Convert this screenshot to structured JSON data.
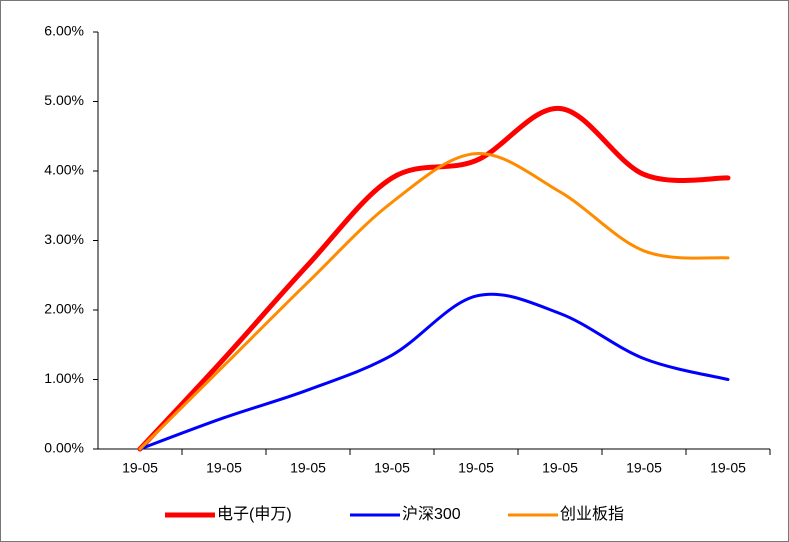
{
  "chart_data": {
    "type": "line",
    "categories": [
      "19-05",
      "19-05",
      "19-05",
      "19-05",
      "19-05",
      "19-05",
      "19-05",
      "19-05"
    ],
    "series": [
      {
        "name": "电子(申万)",
        "color": "#ff0000",
        "values": [
          0,
          1.3,
          2.65,
          3.9,
          4.15,
          4.9,
          3.95,
          3.9
        ]
      },
      {
        "name": "沪深300",
        "color": "#0000ff",
        "values": [
          0,
          0.45,
          0.85,
          1.35,
          2.2,
          1.95,
          1.3,
          1.0
        ]
      },
      {
        "name": "创业板指",
        "color": "#ff8c00",
        "values": [
          0,
          1.2,
          2.4,
          3.55,
          4.25,
          3.7,
          2.85,
          2.75
        ]
      }
    ],
    "ylim": [
      0,
      6
    ],
    "yticks": [
      {
        "value": 0,
        "label": "0.00%"
      },
      {
        "value": 1,
        "label": "1.00%"
      },
      {
        "value": 2,
        "label": "2.00%"
      },
      {
        "value": 3,
        "label": "3.00%"
      },
      {
        "value": 4,
        "label": "4.00%"
      },
      {
        "value": 5,
        "label": "5.00%"
      },
      {
        "value": 6,
        "label": "6.00%"
      }
    ],
    "legend": "bottom",
    "grid": false
  }
}
